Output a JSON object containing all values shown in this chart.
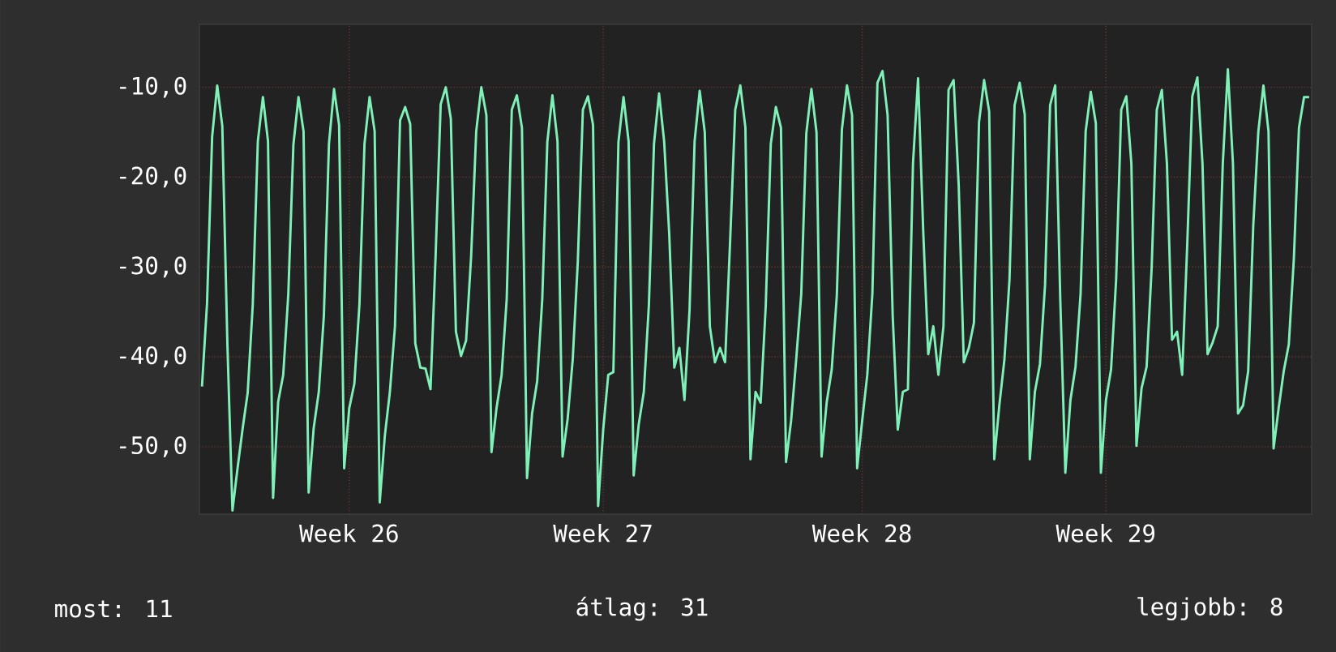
{
  "chart_data": {
    "type": "line",
    "color": "#7ff0b8",
    "line_style": "solid",
    "marker": "none",
    "grid": true,
    "categories": [
      null,
      null,
      null,
      null,
      null,
      null,
      null,
      null,
      null,
      null,
      null,
      null,
      null,
      null,
      null,
      null,
      null,
      null,
      null,
      null,
      null,
      null,
      null,
      null,
      null,
      null,
      null,
      null,
      null,
      "Week 26",
      null,
      null,
      null,
      null,
      null,
      null,
      null,
      null,
      null,
      null,
      null,
      null,
      null,
      null,
      null,
      null,
      null,
      null,
      null,
      null,
      null,
      null,
      null,
      null,
      null,
      null,
      null,
      null,
      null,
      null,
      null,
      null,
      null,
      null,
      null,
      null,
      null,
      null,
      null,
      null,
      null,
      null,
      null,
      null,
      null,
      null,
      null,
      null,
      null,
      "Week 27",
      null,
      null,
      null,
      null,
      null,
      null,
      null,
      null,
      null,
      null,
      null,
      null,
      null,
      null,
      null,
      null,
      null,
      null,
      null,
      null,
      null,
      null,
      null,
      null,
      null,
      null,
      null,
      null,
      null,
      null,
      null,
      null,
      null,
      null,
      null,
      null,
      null,
      null,
      null,
      null,
      null,
      null,
      null,
      null,
      null,
      null,
      null,
      null,
      null,
      null,
      "Week 28",
      null,
      null,
      null,
      null,
      null,
      null,
      null,
      null,
      null,
      null,
      null,
      null,
      null,
      null,
      null,
      null,
      null,
      null,
      null,
      null,
      null,
      null,
      null,
      null,
      null,
      null,
      null,
      null,
      null,
      null,
      null,
      null,
      null,
      null,
      null,
      null,
      null,
      null,
      null,
      null,
      null,
      null,
      null,
      null,
      null,
      null,
      null,
      "Week 29",
      null,
      null,
      null,
      null,
      null,
      null,
      null,
      null,
      null,
      null,
      null,
      null,
      null,
      null,
      null,
      null,
      null,
      null,
      null,
      null,
      null,
      null,
      null,
      null,
      null,
      null,
      null,
      null,
      null,
      null,
      null,
      null,
      null,
      null,
      null,
      null,
      null,
      null,
      null,
      null
    ],
    "values": [
      -43.3,
      -34,
      -15.5,
      -9.8,
      -14.3,
      -38.5,
      -57.1,
      -52.4,
      -48,
      -44,
      -34.2,
      -16,
      -11.1,
      -16,
      -55.7,
      -45,
      -42,
      -33,
      -16.4,
      -11.1,
      -14.9,
      -55.1,
      -47.9,
      -43.9,
      -35.4,
      -16.3,
      -10.2,
      -14.2,
      -52.4,
      -45.7,
      -43,
      -34.2,
      -16.3,
      -11.1,
      -14.9,
      -56.2,
      -48.8,
      -43.9,
      -36.6,
      -13.7,
      -12.2,
      -14.1,
      -38.5,
      -41.2,
      -41.3,
      -43.6,
      -28.8,
      -11.9,
      -10,
      -13.5,
      -37.2,
      -39.9,
      -38.2,
      -28.8,
      -14.9,
      -10,
      -13.1,
      -50.6,
      -45.7,
      -42,
      -33.6,
      -12.5,
      -10.9,
      -14.5,
      -53.5,
      -46.3,
      -42.7,
      -33.6,
      -16.1,
      -10.9,
      -16,
      -51.1,
      -46.9,
      -40.3,
      -29.4,
      -12.5,
      -11,
      -14.2,
      -56.6,
      -48.1,
      -42,
      -41.7,
      -16.1,
      -11.1,
      -16,
      -53.2,
      -47.5,
      -43.9,
      -34.2,
      -16.3,
      -10.7,
      -16,
      -26.3,
      -41.2,
      -39,
      -44.8,
      -34.8,
      -16,
      -10.4,
      -15,
      -36.6,
      -40.6,
      -39,
      -40.6,
      -27,
      -12.5,
      -9.8,
      -14.5,
      -51.4,
      -43.9,
      -45.1,
      -34.4,
      -16.3,
      -12.2,
      -14.5,
      -51.7,
      -47.1,
      -40.3,
      -33,
      -15.1,
      -10.2,
      -15,
      -51.1,
      -45.1,
      -41.4,
      -33.2,
      -14.7,
      -9.8,
      -13.1,
      -52.4,
      -47.1,
      -42,
      -33,
      -9.5,
      -8.2,
      -13.1,
      -35.4,
      -48.1,
      -43.9,
      -43.6,
      -18.5,
      -9,
      -25.8,
      -39.7,
      -36.6,
      -42,
      -36.6,
      -10.3,
      -9.2,
      -20.9,
      -40.6,
      -39,
      -36.2,
      -13.9,
      -9.2,
      -12.7,
      -51.4,
      -45.4,
      -40.3,
      -31.4,
      -12,
      -9.5,
      -13,
      -51.4,
      -43.9,
      -40.8,
      -32,
      -12,
      -9.8,
      -33.6,
      -52.9,
      -44.8,
      -41.1,
      -33,
      -14.9,
      -10.5,
      -14,
      -52.9,
      -44.8,
      -41.4,
      -31.4,
      -12.5,
      -11,
      -18.5,
      -49.9,
      -43.5,
      -41.1,
      -30,
      -12.5,
      -10.3,
      -18.5,
      -38.1,
      -37.2,
      -42,
      -27.5,
      -11,
      -8.9,
      -18.5,
      -39.7,
      -38.4,
      -36.6,
      -18.5,
      -8,
      -18.5,
      -46.3,
      -45.4,
      -41.6,
      -25.4,
      -14.9,
      -9.8,
      -14.9,
      -50.2,
      -45.7,
      -41.6,
      -38.6,
      -29,
      -14.5,
      -11.1,
      -11.1
    ],
    "ylim": [
      -57.5,
      -3
    ],
    "yticks": [
      {
        "value": -50,
        "label": "-50,0"
      },
      {
        "value": -40,
        "label": "-40,0"
      },
      {
        "value": -30,
        "label": "-30,0"
      },
      {
        "value": -20,
        "label": "-20,0"
      },
      {
        "value": -10,
        "label": "-10,0"
      }
    ],
    "annotations": [
      "most: 11",
      "átlag: 31",
      "legjobb: 8"
    ]
  }
}
